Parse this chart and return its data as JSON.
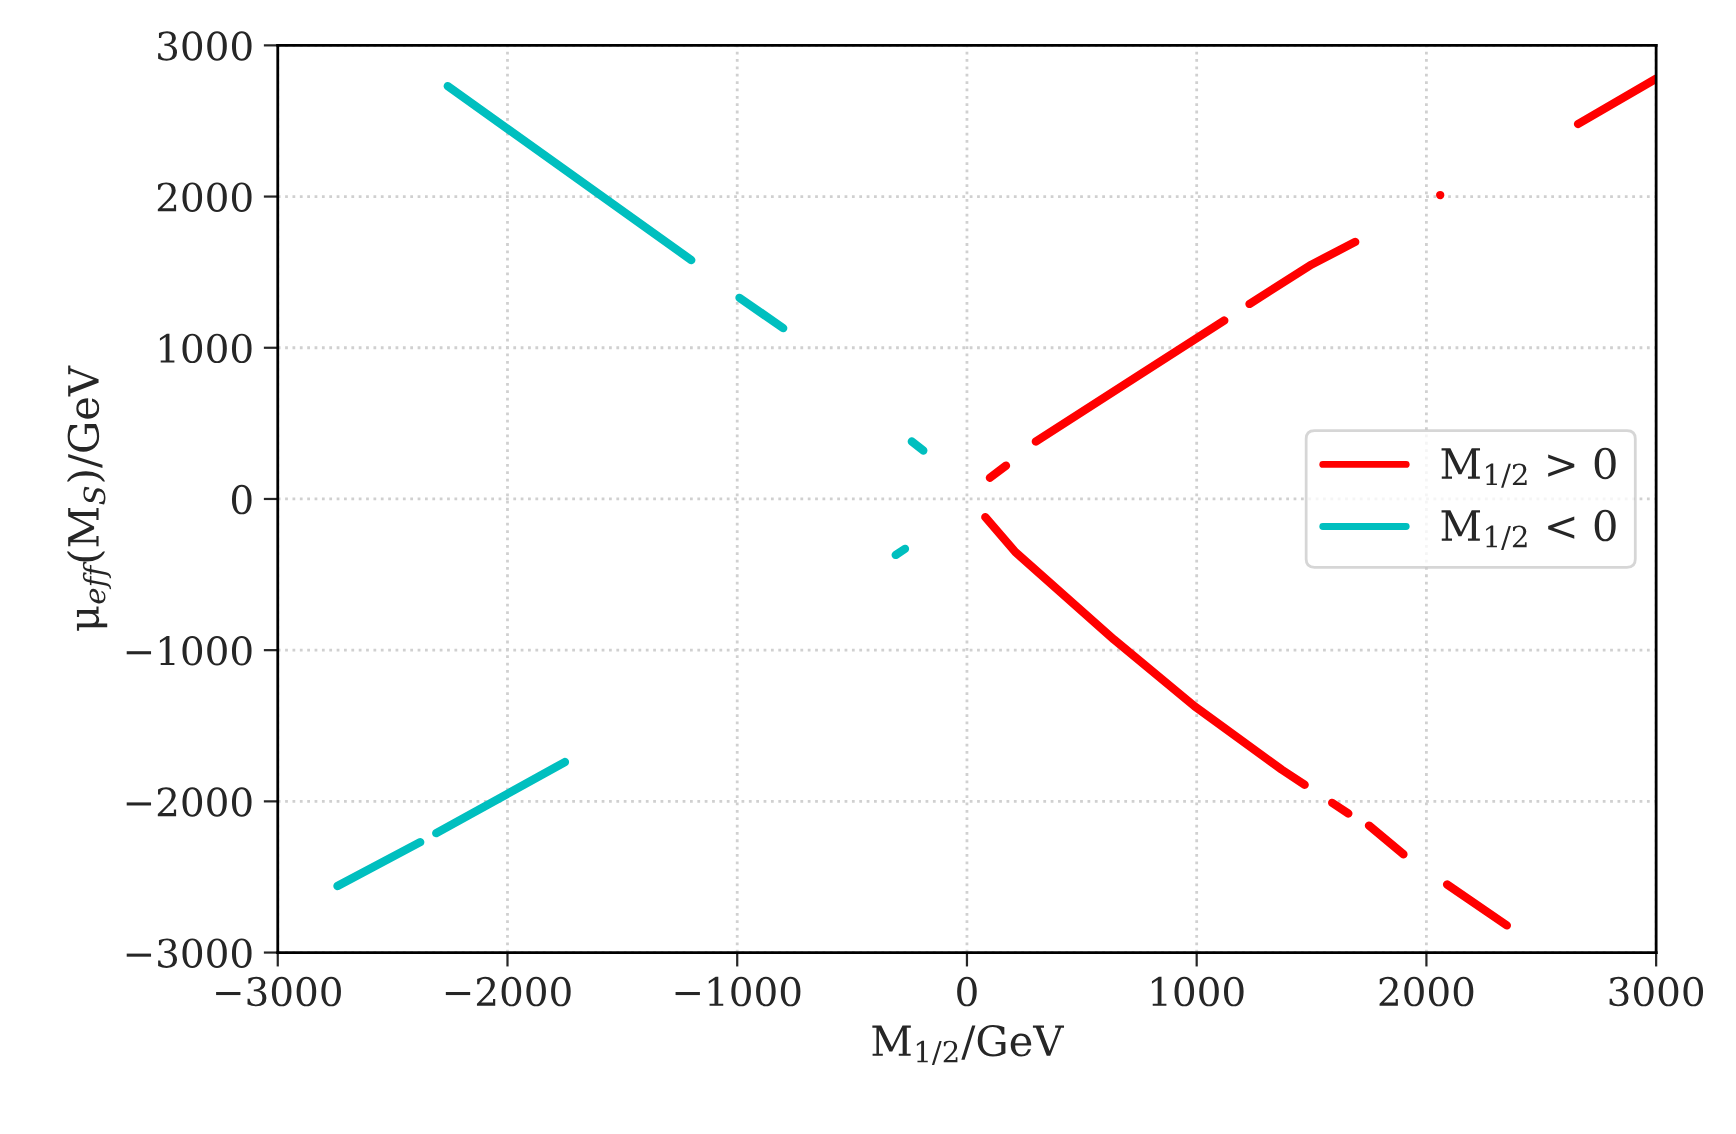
{
  "chart_data": {
    "type": "line",
    "xlabel": "M$_{1/2}$/GeV",
    "ylabel": "μ$_{eff}$(M$_{S}$)/GeV",
    "xlim": [
      -3000,
      3000
    ],
    "ylim": [
      -3000,
      3000
    ],
    "xticks": [
      -3000,
      -2000,
      -1000,
      0,
      1000,
      2000,
      3000
    ],
    "yticks": [
      -3000,
      -2000,
      -1000,
      0,
      1000,
      2000,
      3000
    ],
    "grid": true,
    "legend": "right",
    "line_style": "solid",
    "series": [
      {
        "name": "M$_{1/2}$ > 0",
        "color": "#ff0000",
        "x": [
          100,
          170,
          null,
          300,
          730,
          1120,
          null,
          1230,
          1500,
          1690,
          null,
          2660,
          3000,
          null,
          80,
          210,
          640,
          990,
          1370,
          1470,
          null,
          1590,
          1660,
          null,
          1750,
          1900,
          null,
          2090,
          2350
        ],
        "values": [
          140,
          220,
          null,
          380,
          800,
          1180,
          null,
          1290,
          1550,
          1700,
          null,
          2480,
          2780,
          null,
          -120,
          -350,
          -930,
          -1370,
          -1790,
          -1890,
          null,
          -2010,
          -2080,
          null,
          -2160,
          -2350,
          null,
          -2550,
          -2820
        ]
      },
      {
        "type": "scatter",
        "color": "#ff0000",
        "x": [
          2060
        ],
        "values": [
          2010
        ]
      },
      {
        "name": "M$_{1/2}$ < 0",
        "color": "#00bfbf",
        "x": [
          -2260,
          -1200,
          null,
          -990,
          -800,
          null,
          -240,
          -190,
          null,
          -310,
          -270,
          null,
          -2740,
          -2380,
          null,
          -2310,
          -1750
        ],
        "values": [
          2730,
          1580,
          null,
          1330,
          1130,
          null,
          380,
          320,
          null,
          -370,
          -330,
          null,
          -2560,
          -2270,
          null,
          -2210,
          -1740
        ]
      }
    ]
  }
}
